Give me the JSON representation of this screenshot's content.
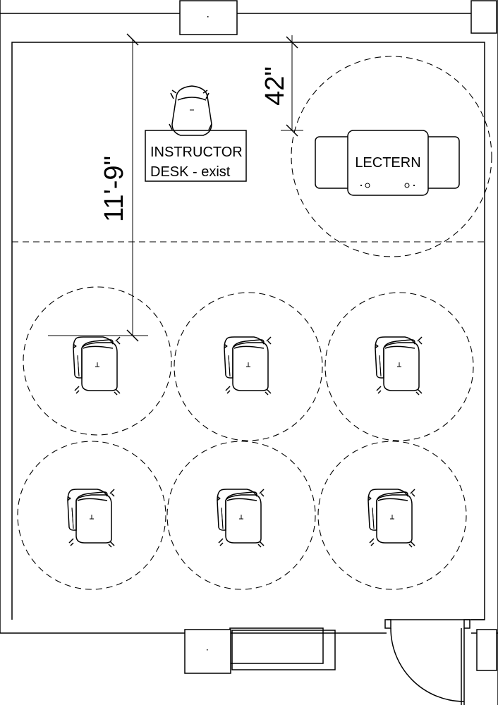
{
  "drawing": {
    "instructor_desk_label_line1": "INSTRUCTOR",
    "instructor_desk_label_line2": "DESK - exist",
    "lectern_label": "LECTERN",
    "dimension_desk_to_zone": "11'-9\"",
    "dimension_lectern_offset": "42\"",
    "student_seat_count": 6
  }
}
